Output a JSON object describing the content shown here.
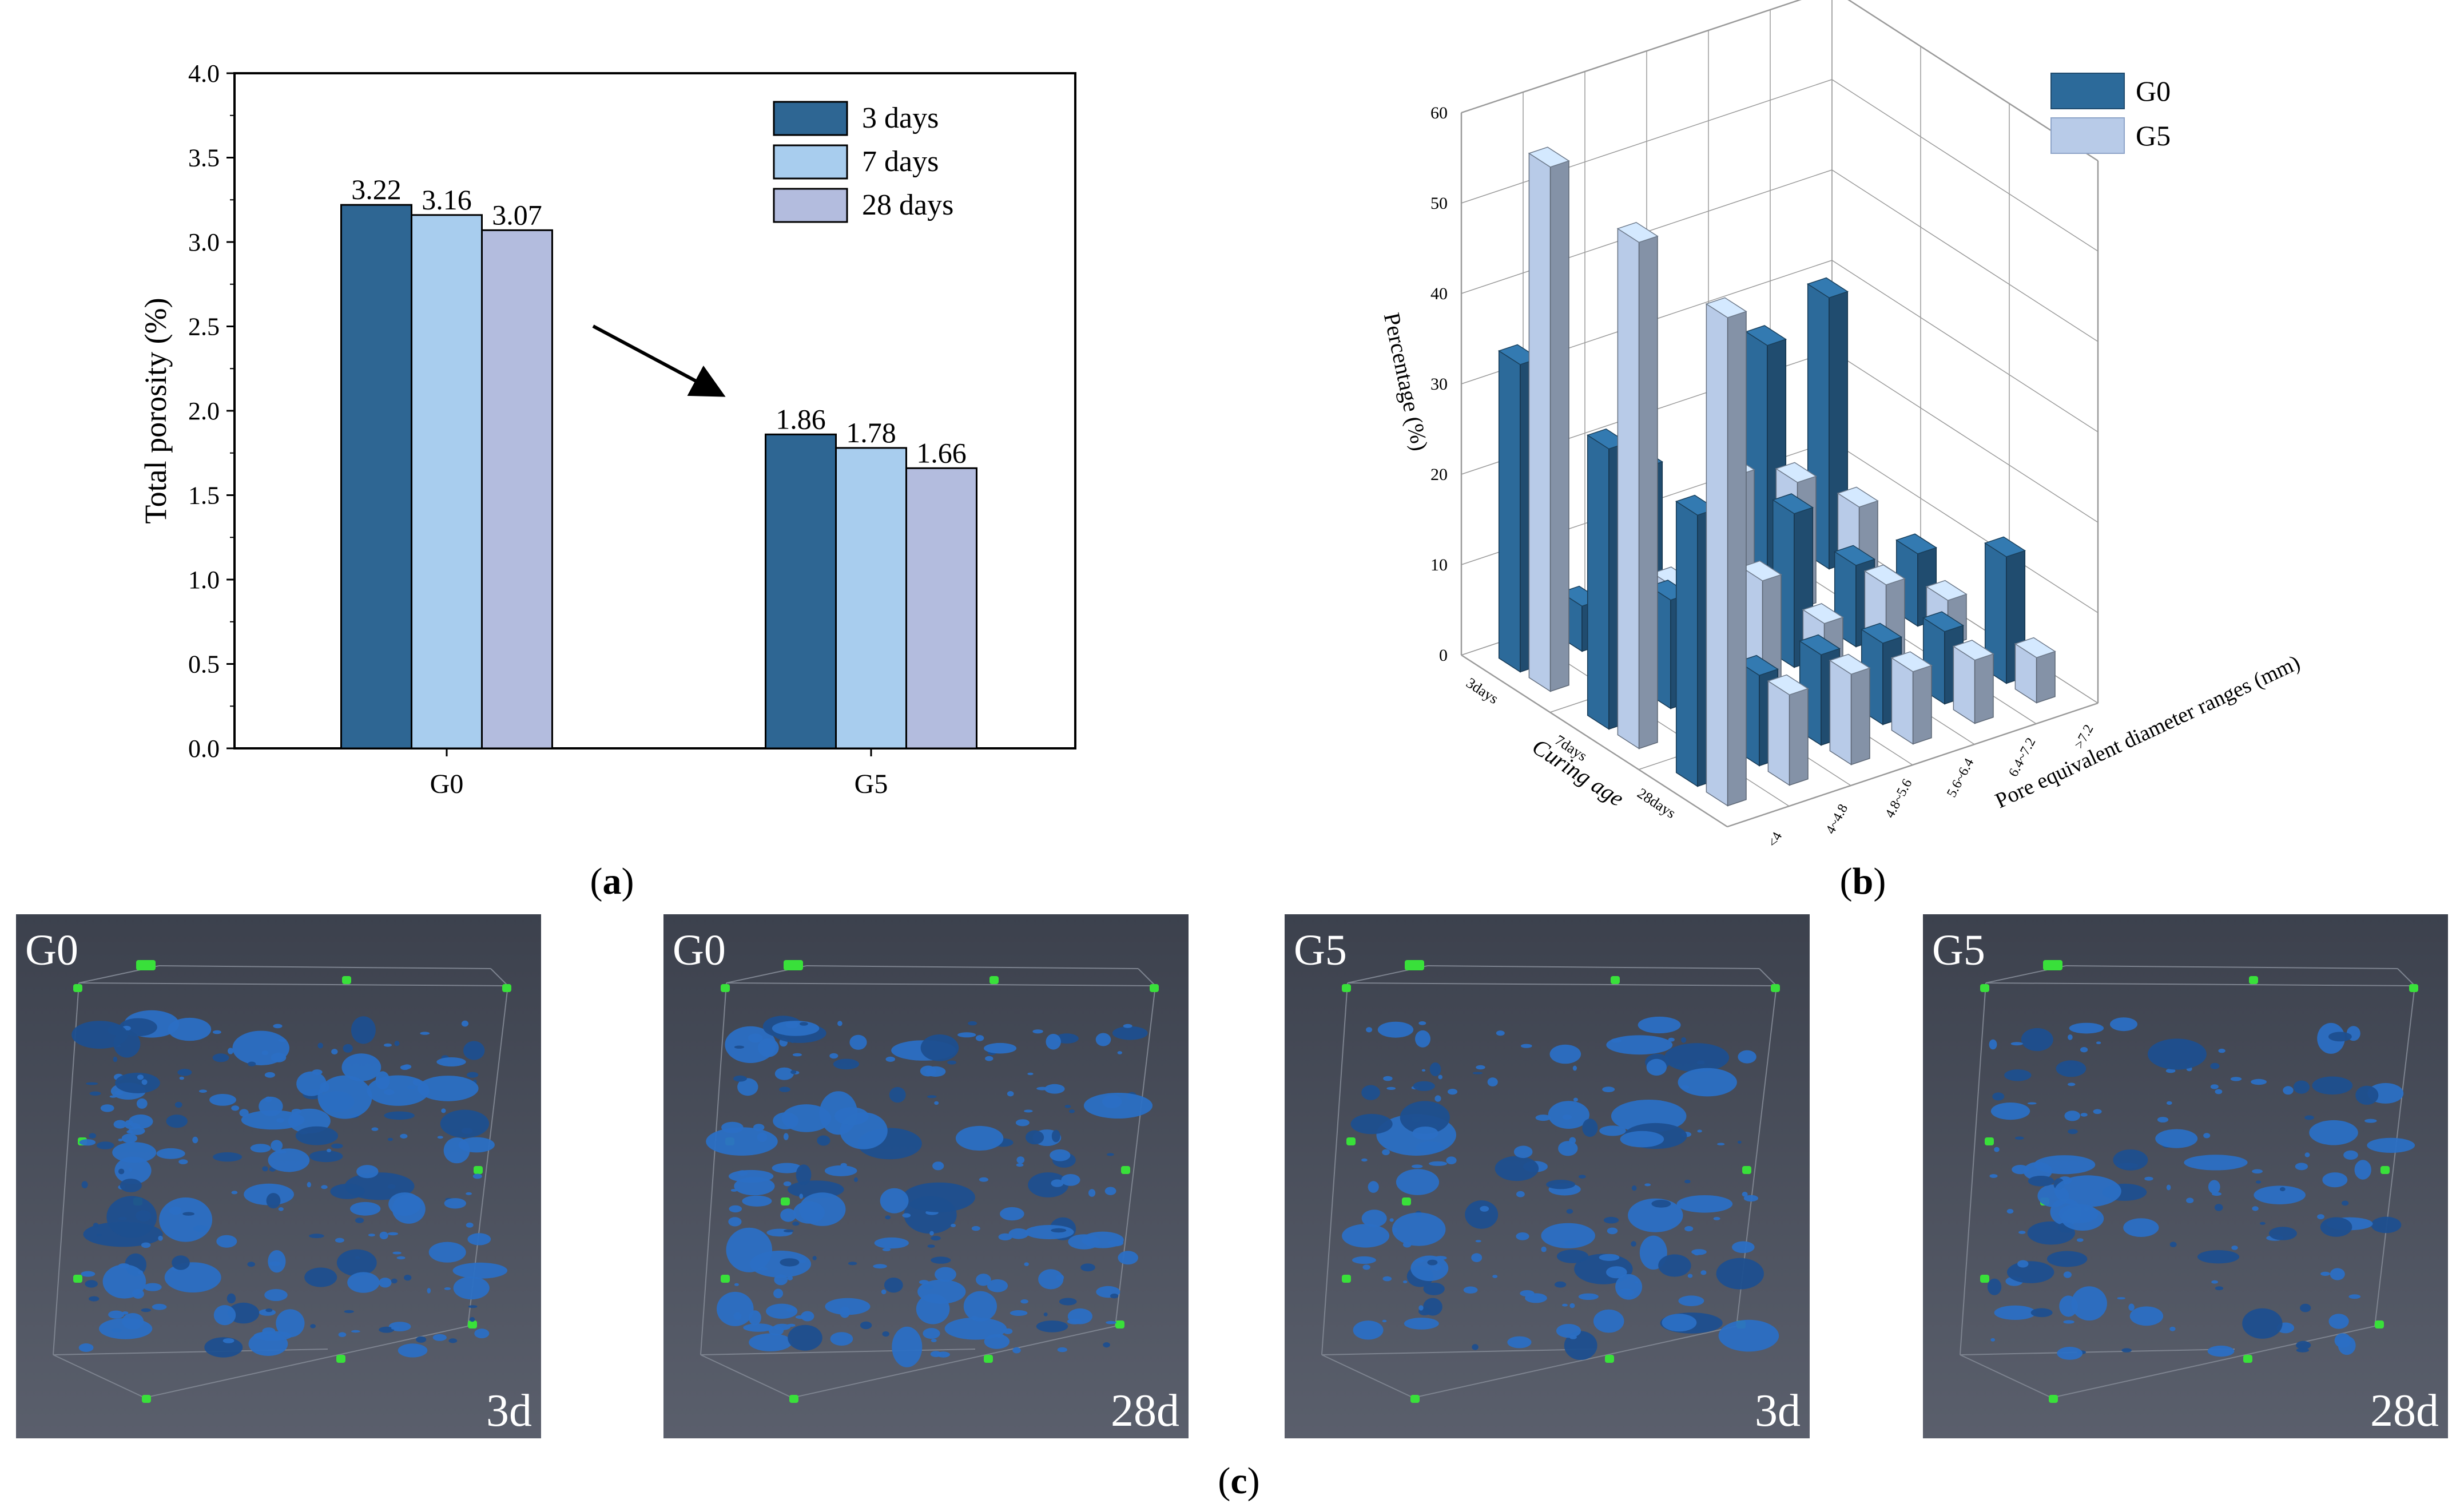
{
  "panel_labels": {
    "a": "(a)",
    "b": "(b)",
    "c": "(c)"
  },
  "colors": {
    "day3": "#2e6693",
    "day7": "#a8cdee",
    "day28": "#b3bcde",
    "g0_3d": "#2c6a9a",
    "g5_3d": "#b8cbe8",
    "scan_bg": "#4a4f5c",
    "pore": "#2b6fc4",
    "marker": "#39e03a"
  },
  "chart_data": [
    {
      "type": "bar",
      "title": "",
      "xlabel": "",
      "ylabel": "Total porosity (%)",
      "categories": [
        "G0",
        "G5"
      ],
      "ylim": [
        0.0,
        4.0
      ],
      "yticks": [
        "0.0",
        "0.5",
        "1.0",
        "1.5",
        "2.0",
        "2.5",
        "3.0",
        "3.5",
        "4.0"
      ],
      "legend_position": "top-right",
      "series": [
        {
          "name": "3 days",
          "values": [
            3.22,
            1.86
          ],
          "labels": [
            "3.22",
            "1.86"
          ]
        },
        {
          "name": "7 days",
          "values": [
            3.16,
            1.78
          ],
          "labels": [
            "3.16",
            "1.78"
          ]
        },
        {
          "name": "28 days",
          "values": [
            3.07,
            1.66
          ],
          "labels": [
            "3.07",
            "1.66"
          ]
        }
      ]
    },
    {
      "type": "bar",
      "title": "",
      "ylabel": "Percentage (%)",
      "xlabel": "Curing age",
      "zlabel": "Pore equivalent diameter ranges (mm)",
      "zlim": [
        0,
        60
      ],
      "zticks": [
        "0",
        "10",
        "20",
        "30",
        "40",
        "50",
        "60"
      ],
      "curing_ages": [
        "3days",
        "7days",
        "28days"
      ],
      "diameter_ranges": [
        "<4",
        "4~4.8",
        "4.8~5.6",
        "5.6~6.4",
        "6.4~7.2",
        ">7.2"
      ],
      "legend_position": "top-right",
      "series": [
        {
          "name": "G0",
          "values": [
            [
              34,
              5,
              18,
              8,
              27,
              30
            ],
            [
              31,
              12,
              8,
              17,
              9,
              8
            ],
            [
              30,
              10,
              10,
              9,
              8,
              14
            ]
          ]
        },
        {
          "name": "G5",
          "values": [
            [
              58,
              6,
              7,
              17,
              14,
              9
            ],
            [
              56,
              12,
              14,
              7,
              9,
              5
            ],
            [
              54,
              10,
              10,
              8,
              7,
              5
            ]
          ]
        }
      ]
    }
  ],
  "scans": [
    {
      "sample": "G0",
      "age": "3d"
    },
    {
      "sample": "G0",
      "age": "28d"
    },
    {
      "sample": "G5",
      "age": "3d"
    },
    {
      "sample": "G5",
      "age": "28d"
    }
  ]
}
